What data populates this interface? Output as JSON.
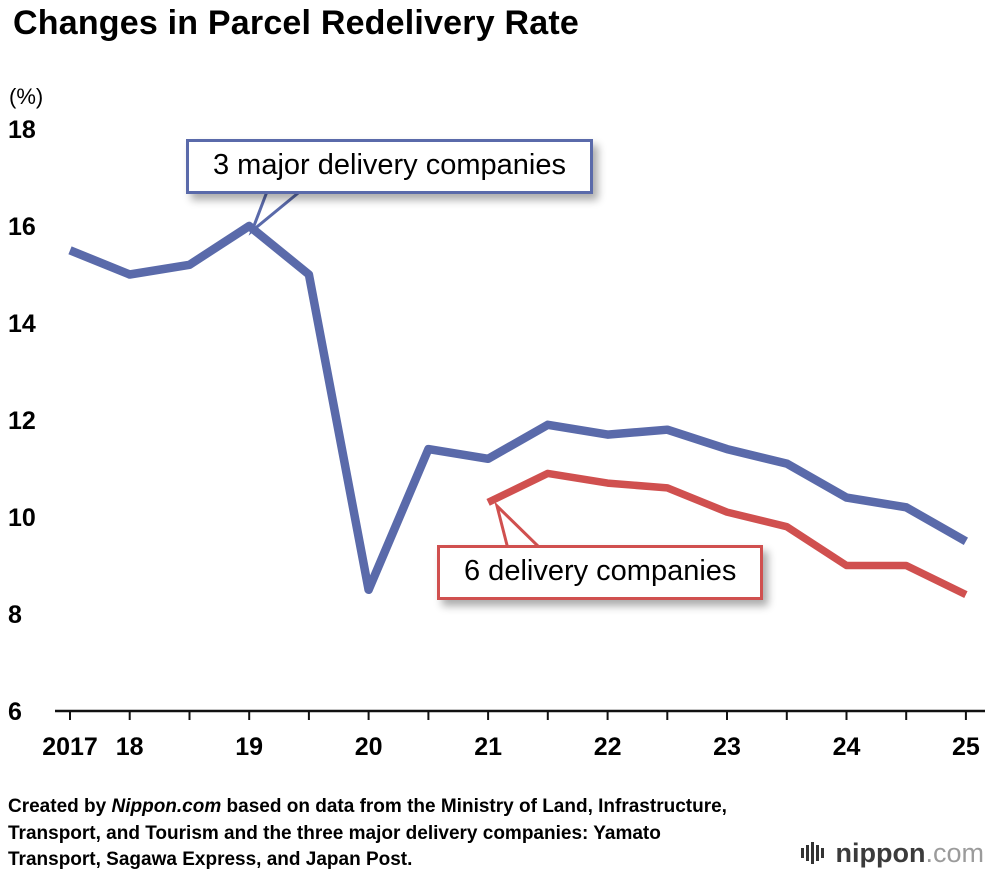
{
  "chart_data": {
    "type": "line",
    "title": "Changes in Parcel Redelivery Rate",
    "ylabel": "(%)",
    "x_axis": {
      "tick_labels": [
        "2017",
        "18",
        "19",
        "20",
        "21",
        "22",
        "23",
        "24",
        "25"
      ],
      "tick_positions": [
        0,
        1,
        3,
        5,
        7,
        9,
        11,
        13,
        15
      ],
      "note_unit": "half-year points between year labels"
    },
    "y_axis": {
      "ticks": [
        6,
        8,
        10,
        12,
        14,
        16,
        18
      ],
      "min": 6,
      "max": 18.6,
      "grid": false
    },
    "legend_position": "annotations-on-chart",
    "series": [
      {
        "name": "3 major delivery companies",
        "color": "#5a6aaa",
        "x": [
          0,
          1,
          2,
          3,
          4,
          5,
          6,
          7,
          8,
          9,
          10,
          11,
          12,
          13,
          14,
          15
        ],
        "values": [
          15.5,
          15.0,
          15.2,
          16.0,
          15.0,
          8.5,
          11.4,
          11.2,
          11.9,
          11.7,
          11.8,
          11.4,
          11.1,
          10.4,
          10.2,
          9.5
        ]
      },
      {
        "name": "6 delivery companies",
        "color": "#d0504f",
        "x": [
          7,
          8,
          9,
          10,
          11,
          12,
          13,
          14,
          15
        ],
        "values": [
          10.3,
          10.9,
          10.7,
          10.6,
          10.1,
          9.8,
          9.0,
          9.0,
          8.4
        ]
      }
    ],
    "annotations": [
      {
        "text": "3 major delivery companies"
      },
      {
        "text": "6 delivery companies"
      }
    ]
  },
  "footer": {
    "prefix": "Created by ",
    "brand": "Nippon.com",
    "suffix": " based on data from the Ministry of Land, Infrastructure, Transport, and Tourism and the three major delivery companies: Yamato Transport, Sagawa Express, and Japan Post."
  },
  "logo": {
    "brand": "nippon",
    "tld": ".com"
  }
}
